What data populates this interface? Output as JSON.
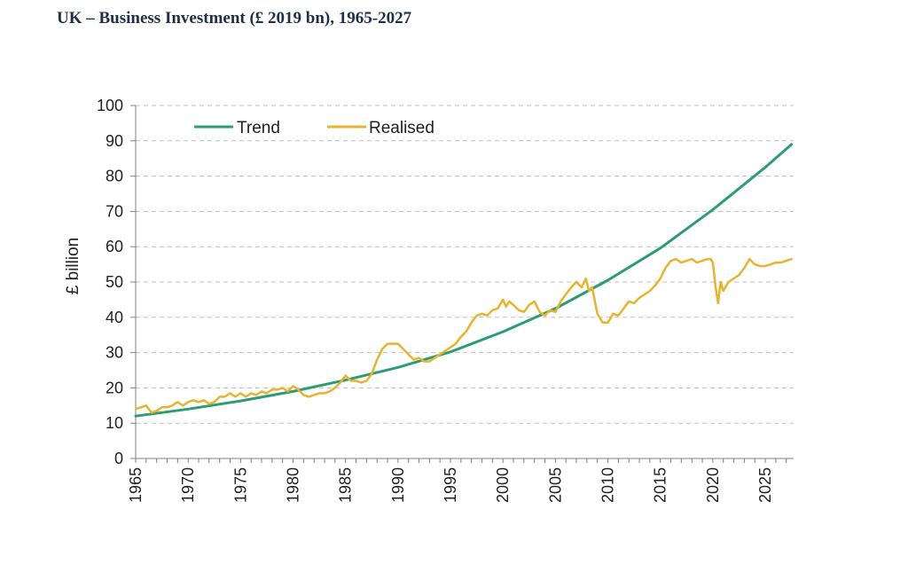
{
  "title": "UK – Business Investment (£ 2019 bn), 1965-2027",
  "colors": {
    "trend": "#2a9d72",
    "realised": "#e8b32d",
    "grid": "#bfbfbf",
    "axis": "#808080"
  },
  "chart_data": {
    "type": "line",
    "title": "UK – Business Investment (£ 2019 bn), 1965-2027",
    "xlabel": "",
    "ylabel": "£ billion",
    "xlim": [
      1965,
      2027.7
    ],
    "ylim": [
      0,
      100
    ],
    "yticks": [
      0,
      10,
      20,
      30,
      40,
      50,
      60,
      70,
      80,
      90,
      100
    ],
    "xticks": [
      1965,
      1970,
      1975,
      1980,
      1985,
      1990,
      1995,
      2000,
      2005,
      2010,
      2015,
      2020,
      2025
    ],
    "grid": true,
    "legend_position": "top-left",
    "series": [
      {
        "name": "Trend",
        "color": "#2a9d72",
        "x": [
          1965,
          1970,
          1975,
          1980,
          1985,
          1990,
          1995,
          2000,
          2005,
          2010,
          2015,
          2020,
          2025,
          2027.5
        ],
        "y": [
          12,
          14,
          16.3,
          19,
          22.2,
          25.8,
          30.2,
          35.9,
          42.5,
          50.5,
          59.6,
          70.5,
          82.5,
          89
        ]
      },
      {
        "name": "Realised",
        "color": "#e8b32d",
        "x": [
          1965,
          1965.5,
          1966,
          1966.5,
          1967,
          1967.5,
          1968,
          1968.5,
          1969,
          1969.5,
          1970,
          1970.5,
          1971,
          1971.5,
          1972,
          1972.5,
          1973,
          1973.5,
          1974,
          1974.5,
          1975,
          1975.5,
          1976,
          1976.5,
          1977,
          1977.5,
          1978,
          1978.5,
          1979,
          1979.5,
          1980,
          1980.5,
          1981,
          1981.5,
          1982,
          1982.5,
          1983,
          1983.5,
          1984,
          1984.5,
          1985,
          1985.5,
          1986,
          1986.5,
          1987,
          1987.5,
          1988,
          1988.5,
          1989,
          1989.5,
          1990,
          1990.5,
          1991,
          1991.5,
          1992,
          1992.5,
          1993,
          1993.5,
          1994,
          1994.5,
          1995,
          1995.5,
          1996,
          1996.5,
          1997,
          1997.5,
          1998,
          1998.5,
          1999,
          1999.5,
          2000,
          2000.3,
          2000.6,
          2001,
          2001.5,
          2002,
          2002.5,
          2003,
          2003.5,
          2004,
          2004.5,
          2005,
          2005.5,
          2006,
          2006.5,
          2007,
          2007.5,
          2007.9,
          2008.2,
          2008.5,
          2009,
          2009.5,
          2010,
          2010.5,
          2011,
          2011.5,
          2012,
          2012.5,
          2013,
          2013.5,
          2014,
          2014.5,
          2015,
          2015.5,
          2016,
          2016.5,
          2017,
          2017.5,
          2018,
          2018.5,
          2019,
          2019.5,
          2019.8,
          2020,
          2020.25,
          2020.5,
          2020.75,
          2021,
          2021.5,
          2022,
          2022.5,
          2023,
          2023.5,
          2024,
          2024.5,
          2025,
          2025.5,
          2026,
          2026.5,
          2027,
          2027.5
        ],
        "y": [
          14,
          14.5,
          15,
          13,
          13.5,
          14.5,
          14.5,
          15,
          16,
          15,
          16,
          16.5,
          16,
          16.5,
          15.5,
          16,
          17.5,
          17.5,
          18.5,
          17.5,
          18.5,
          17.5,
          18.5,
          18,
          19,
          18.5,
          19.5,
          19.5,
          20,
          19,
          20.5,
          19.5,
          18,
          17.5,
          18,
          18.5,
          18.5,
          19,
          20,
          21.5,
          23.5,
          22,
          22,
          21.5,
          22,
          24,
          28,
          31,
          32.5,
          32.5,
          32.5,
          31,
          29.5,
          28,
          28.5,
          27.5,
          27.5,
          28.5,
          29.5,
          30.5,
          31.5,
          32.5,
          34.5,
          36,
          38.5,
          40.5,
          41,
          40.5,
          42,
          42.5,
          45,
          43,
          44.5,
          43.5,
          42,
          41.5,
          43.5,
          44.5,
          41.5,
          40.5,
          42,
          41.5,
          44.5,
          46.5,
          48.5,
          50,
          48.5,
          51,
          47.5,
          48.5,
          41,
          38.5,
          38.5,
          41,
          40.5,
          42.5,
          44.5,
          44,
          45.5,
          46.5,
          47.5,
          49,
          51,
          54,
          56,
          56.5,
          55.5,
          56,
          56.5,
          55.5,
          56,
          56.5,
          56.5,
          55.5,
          49,
          44,
          50,
          47.5,
          50,
          51,
          52,
          54,
          56.5,
          55,
          54.5,
          54.5,
          55,
          55.5,
          55.5,
          56,
          56.5
        ]
      }
    ]
  }
}
